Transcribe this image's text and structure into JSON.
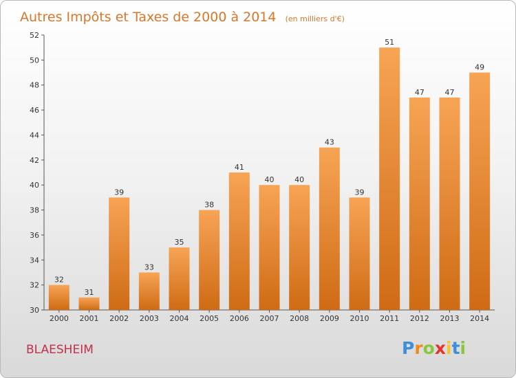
{
  "chart_data": {
    "type": "bar",
    "title": "Autres Impôts et Taxes de 2000 à 2014",
    "subtitle": "(en milliers d'€)",
    "categories": [
      "2000",
      "2001",
      "2002",
      "2003",
      "2004",
      "2005",
      "2006",
      "2007",
      "2008",
      "2009",
      "2010",
      "2011",
      "2012",
      "2013",
      "2014"
    ],
    "values": [
      32,
      31,
      39,
      33,
      35,
      38,
      41,
      40,
      40,
      43,
      39,
      51,
      47,
      47,
      49
    ],
    "ylim": [
      30,
      52
    ],
    "yticks": [
      30,
      32,
      34,
      36,
      38,
      40,
      42,
      44,
      46,
      48,
      50,
      52
    ],
    "xlabel": "",
    "ylabel": "",
    "grid": false,
    "bar_color": "#f0953a"
  },
  "location": "BLAESHEIM",
  "logo": {
    "letters": [
      "P",
      "r",
      "o",
      "x",
      "i",
      "t",
      "i"
    ],
    "colors": [
      "#3d8fd9",
      "#f08a1e",
      "#8cc63f",
      "#e5322d",
      "#f7c22a",
      "#3d8fd9",
      "#8cc63f"
    ]
  }
}
